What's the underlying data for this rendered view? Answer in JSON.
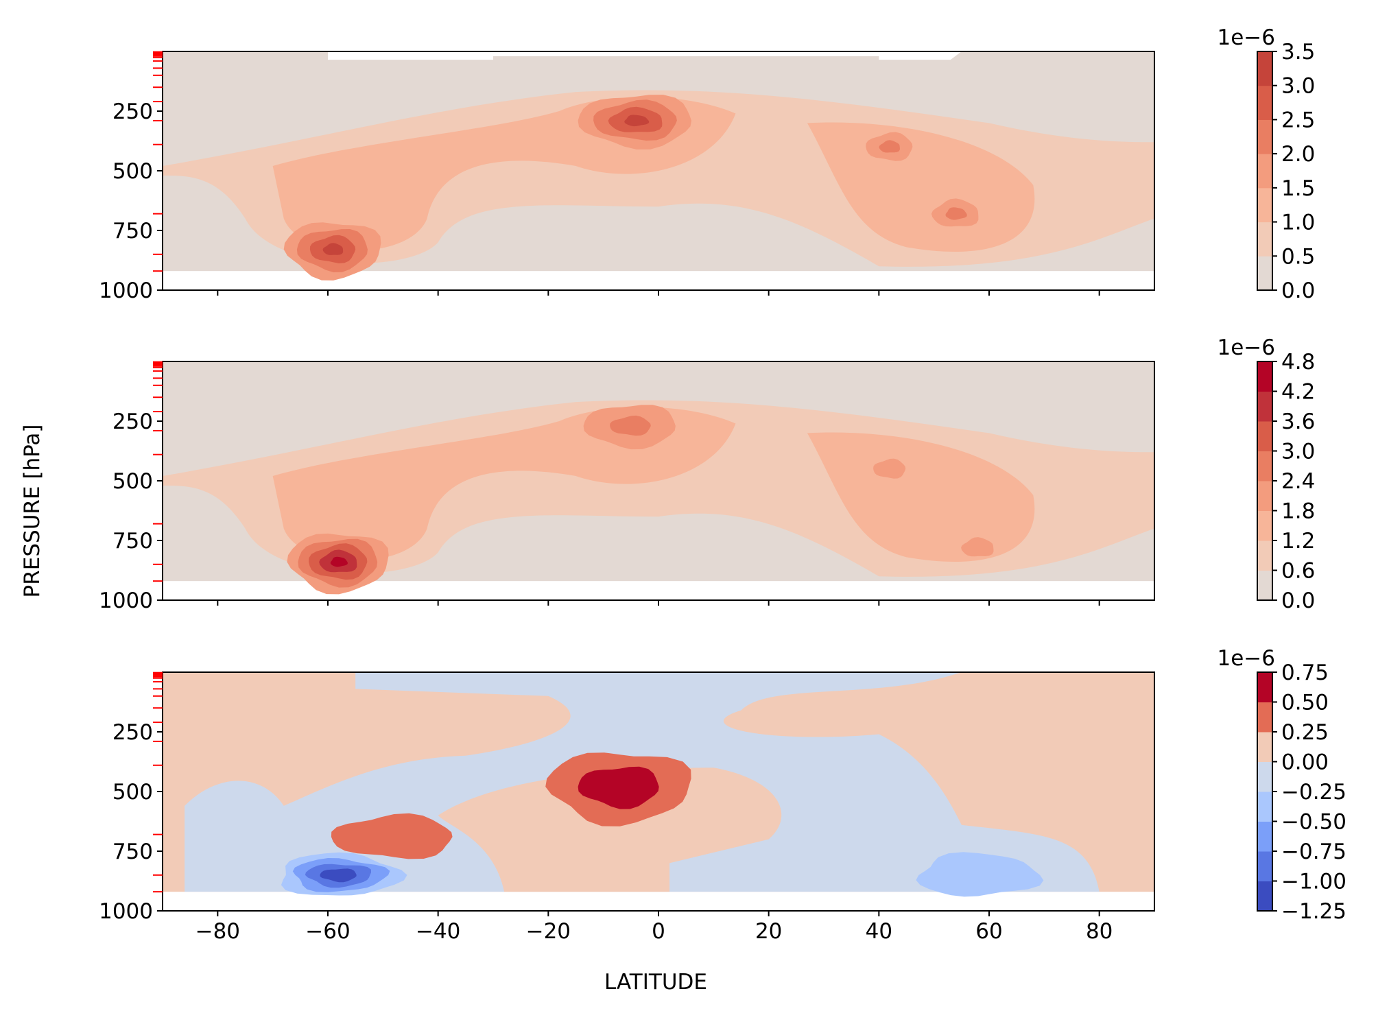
{
  "chart_data": {
    "type": "heatmap",
    "kind": "filled-contour latitude-pressure cross sections",
    "xlabel": "LATITUDE",
    "ylabel": "PRESSURE [hPa]",
    "xlim": [
      -90,
      90
    ],
    "ylim": [
      1000,
      0
    ],
    "y_inverted": true,
    "xticks": [
      "−80",
      "−60",
      "−40",
      "−20",
      "0",
      "20",
      "40",
      "60",
      "80"
    ],
    "xtick_values": [
      -80,
      -60,
      -40,
      -20,
      0,
      20,
      40,
      60,
      80
    ],
    "yticks": [
      "250",
      "500",
      "750",
      "1000"
    ],
    "ytick_values": [
      250,
      500,
      750,
      1000
    ],
    "grid": false,
    "model_levels_hPa": [
      2,
      4,
      7,
      10,
      14,
      19,
      25,
      40,
      70,
      100,
      150,
      210,
      290,
      390,
      680,
      850,
      920
    ],
    "level_marker_color": "#ff0000",
    "panels": [
      {
        "colorbar_offset": "1e−6",
        "levels": [
          0.0,
          0.5,
          1.0,
          1.5,
          2.0,
          2.5,
          3.0,
          3.5
        ],
        "colorbar_ticks": [
          "0.0",
          "0.5",
          "1.0",
          "1.5",
          "2.0",
          "2.5",
          "3.0",
          "3.5"
        ],
        "colors": [
          "#e3d9d3",
          "#f2cbb7",
          "#f7b599",
          "#f39c7e",
          "#e97e62",
          "#d95d49",
          "#c5443a"
        ],
        "features": [
          {
            "lat": -59,
            "p": 830,
            "peak": 3.1,
            "note": "southern lower-tropospheric maximum"
          },
          {
            "lat": -4,
            "p": 290,
            "peak": 3.2,
            "note": "tropical upper-tropospheric maximum"
          },
          {
            "lat": 42,
            "p": 400,
            "peak": 2.2
          },
          {
            "lat": 54,
            "p": 680,
            "peak": 2.3
          }
        ]
      },
      {
        "colorbar_offset": "1e−6",
        "levels": [
          0.0,
          0.6,
          1.2,
          1.8,
          2.4,
          3.0,
          3.6,
          4.2,
          4.8
        ],
        "colorbar_ticks": [
          "0.0",
          "0.6",
          "1.2",
          "1.8",
          "2.4",
          "3.0",
          "3.6",
          "4.2",
          "4.8"
        ],
        "colors": [
          "#e3d9d3",
          "#f2cbb7",
          "#f7b599",
          "#f39c7e",
          "#e97e62",
          "#d95d49",
          "#c0323a",
          "#b40426"
        ],
        "features": [
          {
            "lat": -58,
            "p": 840,
            "peak": 4.5,
            "note": "southern lower-tropospheric maximum"
          },
          {
            "lat": -5,
            "p": 270,
            "peak": 2.9,
            "note": "tropical upper-tropospheric maximum"
          },
          {
            "lat": 42,
            "p": 450,
            "peak": 2.1
          },
          {
            "lat": 58,
            "p": 780,
            "peak": 2.1
          }
        ]
      },
      {
        "colorbar_offset": "1e−6",
        "levels": [
          -1.25,
          -1.0,
          -0.75,
          -0.5,
          -0.25,
          0.0,
          0.25,
          0.5,
          0.75
        ],
        "colorbar_ticks": [
          "−1.25",
          "−1.00",
          "−0.75",
          "−0.50",
          "−0.25",
          "0.00",
          "0.25",
          "0.50",
          "0.75"
        ],
        "colors": [
          "#3b4cc0",
          "#5977e3",
          "#7b9ff9",
          "#aac7fd",
          "#cdd9ec",
          "#f2cbb7",
          "#e36c55",
          "#b40426"
        ],
        "features": [
          {
            "lat": -58,
            "p": 850,
            "peak": -1.1,
            "note": "southern negative minimum"
          },
          {
            "lat": -7,
            "p": 480,
            "peak": 0.6,
            "note": "tropical mid-tropospheric positive maximum"
          },
          {
            "lat": -48,
            "p": 690,
            "peak": 0.3
          },
          {
            "lat": 58,
            "p": 850,
            "peak": -0.4
          }
        ]
      }
    ]
  }
}
